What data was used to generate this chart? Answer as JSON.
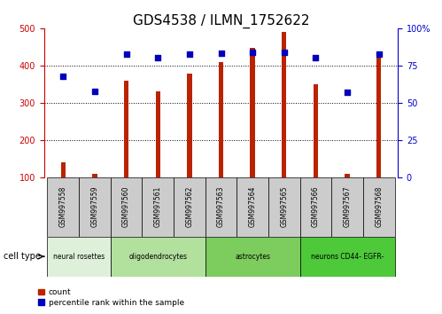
{
  "title": "GDS4538 / ILMN_1752622",
  "samples": [
    "GSM997558",
    "GSM997559",
    "GSM997560",
    "GSM997561",
    "GSM997562",
    "GSM997563",
    "GSM997564",
    "GSM997565",
    "GSM997566",
    "GSM997567",
    "GSM997568"
  ],
  "counts": [
    140,
    108,
    360,
    330,
    378,
    408,
    448,
    490,
    350,
    108,
    428
  ],
  "percentiles_left_scale": [
    370,
    330,
    430,
    422,
    430,
    432,
    435,
    435,
    422,
    328,
    430
  ],
  "cell_types": [
    {
      "label": "neural rosettes",
      "start": 0,
      "end": 2,
      "color": "#dff0da"
    },
    {
      "label": "oligodendrocytes",
      "start": 2,
      "end": 5,
      "color": "#b2e09d"
    },
    {
      "label": "astrocytes",
      "start": 5,
      "end": 8,
      "color": "#7dcc5e"
    },
    {
      "label": "neurons CD44- EGFR-",
      "start": 8,
      "end": 11,
      "color": "#4dc93a"
    }
  ],
  "ylim_left": [
    100,
    500
  ],
  "ylim_right": [
    0,
    100
  ],
  "yticks_left": [
    100,
    200,
    300,
    400,
    500
  ],
  "yticks_right": [
    0,
    25,
    50,
    75,
    100
  ],
  "bar_color": "#bb2200",
  "dot_color": "#0000bb",
  "bar_width": 0.15,
  "title_fontsize": 11,
  "tick_fontsize": 7,
  "cell_type_label": "cell type",
  "legend_count": "count",
  "legend_percentile": "percentile rank within the sample",
  "left_axis_color": "#cc0000",
  "right_axis_color": "#0000cc",
  "xtick_bg_color": "#cccccc",
  "grid_yticks": [
    200,
    300,
    400
  ]
}
